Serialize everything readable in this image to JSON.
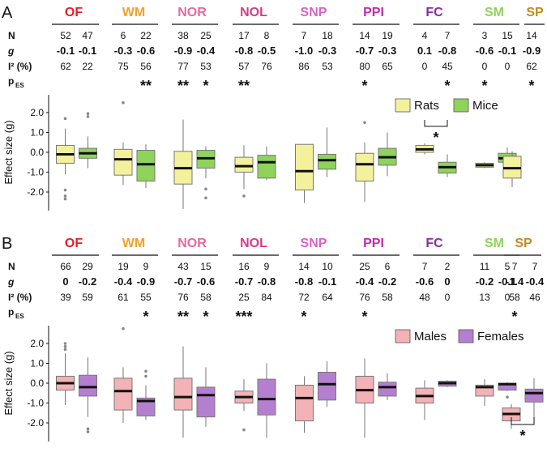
{
  "chart_data": [
    {
      "panel": "A",
      "type": "box",
      "tests": [
        {
          "name": "OF",
          "color": "#e0202a"
        },
        {
          "name": "WM",
          "color": "#f2a12a"
        },
        {
          "name": "NOR",
          "color": "#e9689b"
        },
        {
          "name": "NOL",
          "color": "#d33d85"
        },
        {
          "name": "SNP",
          "color": "#d861c7"
        },
        {
          "name": "PPI",
          "color": "#c42aa9"
        },
        {
          "name": "FC",
          "color": "#8a2ca0"
        },
        {
          "name": "SM",
          "color": "#8fd35a"
        },
        {
          "name": "SP",
          "color": "#c58a1e"
        }
      ],
      "row_labels": {
        "n": "N",
        "g": "g",
        "i2": "I² (%)",
        "p": "p"
      },
      "p_subscript": "ES",
      "groups": [
        {
          "N": "52",
          "g": "-0.1",
          "I2": "62",
          "p": ""
        },
        {
          "N": "47",
          "g": "-0.1",
          "I2": "22",
          "p": ""
        },
        {
          "N": "6",
          "g": "-0.3",
          "I2": "75",
          "p": ""
        },
        {
          "N": "22",
          "g": "-0.6",
          "I2": "56",
          "p": "**"
        },
        {
          "N": "38",
          "g": "-0.9",
          "I2": "77",
          "p": "**"
        },
        {
          "N": "25",
          "g": "-0.4",
          "I2": "53",
          "p": "*"
        },
        {
          "N": "17",
          "g": "-0.8",
          "I2": "57",
          "p": "**"
        },
        {
          "N": "8",
          "g": "-0.5",
          "I2": "76",
          "p": ""
        },
        {
          "N": "7",
          "g": "-1.0",
          "I2": "86",
          "p": ""
        },
        {
          "N": "18",
          "g": "-0.3",
          "I2": "53",
          "p": ""
        },
        {
          "N": "14",
          "g": "-0.7",
          "I2": "80",
          "p": "*"
        },
        {
          "N": "19",
          "g": "-0.3",
          "I2": "65",
          "p": ""
        },
        {
          "N": "4",
          "g": "0.1",
          "I2": "0",
          "p": ""
        },
        {
          "N": "7",
          "g": "-0.8",
          "I2": "45",
          "p": "*"
        },
        {
          "N": "3",
          "g": "-0.6",
          "I2": "0",
          "p": "*",
          "grey": true
        },
        {
          "N": "15",
          "g": "-0.1",
          "I2": "0",
          "p": ""
        },
        {
          "N": "14",
          "g": "-0.9",
          "I2": "62",
          "p": "*"
        }
      ],
      "ylabel": "Effect size (g)",
      "yticks": [
        "2.0",
        "1.0",
        "0.0",
        "-1.0",
        "-2.0"
      ],
      "ylim": [
        -3.0,
        2.6
      ],
      "legend": [
        {
          "label": "Rats",
          "color": "#f4f19d"
        },
        {
          "label": "Mice",
          "color": "#8fd35a"
        }
      ],
      "boxes": [
        {
          "test": "OF",
          "series": "Rats",
          "q1": -0.55,
          "median": -0.1,
          "q3": 0.35,
          "wlo": -1.1,
          "whi": 1.2,
          "out": [
            1.7,
            -1.9,
            -2.2,
            -2.35
          ]
        },
        {
          "test": "OF",
          "series": "Mice",
          "q1": -0.3,
          "median": -0.05,
          "q3": 0.2,
          "wlo": -0.8,
          "whi": 0.8,
          "out": [
            1.95,
            1.8
          ]
        },
        {
          "test": "WM",
          "series": "Rats",
          "q1": -1.15,
          "median": -0.35,
          "q3": 0.15,
          "wlo": -1.65,
          "whi": 0.5,
          "out": [
            2.5
          ]
        },
        {
          "test": "WM",
          "series": "Mice",
          "q1": -1.45,
          "median": -0.6,
          "q3": 0.1,
          "wlo": -1.8,
          "whi": 0.4,
          "out": []
        },
        {
          "test": "NOR",
          "series": "Rats",
          "q1": -1.6,
          "median": -0.8,
          "q3": 0.05,
          "wlo": -2.85,
          "whi": 1.65,
          "out": []
        },
        {
          "test": "NOR",
          "series": "Mice",
          "q1": -0.8,
          "median": -0.3,
          "q3": 0.1,
          "wlo": -1.3,
          "whi": 0.3,
          "out": [
            -1.85,
            -2.3
          ]
        },
        {
          "test": "NOL",
          "series": "Rats",
          "q1": -1.0,
          "median": -0.7,
          "q3": -0.25,
          "wlo": -1.85,
          "whi": 0.35,
          "out": [
            -2.2
          ]
        },
        {
          "test": "NOL",
          "series": "Mice",
          "q1": -1.3,
          "median": -0.5,
          "q3": -0.15,
          "wlo": -1.4,
          "whi": 0.3,
          "out": []
        },
        {
          "test": "SNP",
          "series": "Rats",
          "q1": -1.9,
          "median": -0.95,
          "q3": 0.4,
          "wlo": -2.55,
          "whi": 0.4,
          "out": []
        },
        {
          "test": "SNP",
          "series": "Mice",
          "q1": -0.85,
          "median": -0.4,
          "q3": -0.1,
          "wlo": -1.25,
          "whi": 1.25,
          "out": []
        },
        {
          "test": "PPI",
          "series": "Rats",
          "q1": -1.45,
          "median": -0.6,
          "q3": -0.05,
          "wlo": -2.5,
          "whi": 0.5,
          "out": [
            1.5
          ]
        },
        {
          "test": "PPI",
          "series": "Mice",
          "q1": -0.65,
          "median": -0.25,
          "q3": 0.2,
          "wlo": -1.2,
          "whi": 1.0,
          "out": []
        },
        {
          "test": "FC",
          "series": "Rats",
          "q1": 0.0,
          "median": 0.15,
          "q3": 0.35,
          "wlo": -0.1,
          "whi": 0.45,
          "out": []
        },
        {
          "test": "FC",
          "series": "Mice",
          "q1": -1.05,
          "median": -0.75,
          "q3": -0.5,
          "wlo": -1.25,
          "whi": -0.1,
          "out": []
        },
        {
          "test": "SM",
          "series": "Rats",
          "q1": -0.75,
          "median": -0.65,
          "q3": -0.55,
          "wlo": -0.8,
          "whi": -0.5,
          "out": []
        },
        {
          "test": "SM",
          "series": "Mice",
          "q1": -0.5,
          "median": -0.3,
          "q3": -0.05,
          "wlo": -1.0,
          "whi": 0.25,
          "out": []
        },
        {
          "test": "SP",
          "series": "Rats",
          "q1": -1.3,
          "median": -0.8,
          "q3": -0.2,
          "wlo": -1.75,
          "whi": 0.05,
          "out": []
        }
      ],
      "significance": {
        "between": "FC",
        "label": "*"
      }
    },
    {
      "panel": "B",
      "type": "box",
      "tests": [
        {
          "name": "OF",
          "color": "#e0202a"
        },
        {
          "name": "WM",
          "color": "#f2a12a"
        },
        {
          "name": "NOR",
          "color": "#e9689b"
        },
        {
          "name": "NOL",
          "color": "#d33d85"
        },
        {
          "name": "SNP",
          "color": "#d861c7"
        },
        {
          "name": "PPI",
          "color": "#c42aa9"
        },
        {
          "name": "FC",
          "color": "#8a2ca0"
        },
        {
          "name": "SM",
          "color": "#8fd35a"
        },
        {
          "name": "SP",
          "color": "#c58a1e"
        }
      ],
      "row_labels": {
        "n": "N",
        "g": "g",
        "i2": "I² (%)",
        "p": "p"
      },
      "p_subscript": "ES",
      "groups": [
        {
          "N": "66",
          "g": "0",
          "I2": "39",
          "p": ""
        },
        {
          "N": "29",
          "g": "-0.2",
          "I2": "59",
          "p": ""
        },
        {
          "N": "19",
          "g": "-0.4",
          "I2": "61",
          "p": ""
        },
        {
          "N": "9",
          "g": "-0.9",
          "I2": "55",
          "p": "*"
        },
        {
          "N": "43",
          "g": "-0.7",
          "I2": "76",
          "p": "**"
        },
        {
          "N": "15",
          "g": "-0.6",
          "I2": "58",
          "p": "*"
        },
        {
          "N": "16",
          "g": "-0.7",
          "I2": "25",
          "p": "***"
        },
        {
          "N": "9",
          "g": "-0.8",
          "I2": "84",
          "p": ""
        },
        {
          "N": "14",
          "g": "-0.8",
          "I2": "72",
          "p": "*"
        },
        {
          "N": "10",
          "g": "-0.1",
          "I2": "64",
          "p": ""
        },
        {
          "N": "25",
          "g": "-0.4",
          "I2": "76",
          "p": "*"
        },
        {
          "N": "6",
          "g": "-0.2",
          "I2": "58",
          "p": ""
        },
        {
          "N": "7",
          "g": "-0.6",
          "I2": "48",
          "p": ""
        },
        {
          "N": "2",
          "g": "0",
          "I2": "0",
          "p": "",
          "grey": true
        },
        {
          "N": "11",
          "g": "-0.2",
          "I2": "13",
          "p": ""
        },
        {
          "N": "5",
          "g": "-0.1",
          "I2": "0",
          "p": ""
        },
        {
          "N": "7",
          "g": "-1.4",
          "I2": "58",
          "p": "*"
        },
        {
          "N": "7",
          "g": "-0.4",
          "I2": "46",
          "p": ""
        }
      ],
      "ylabel": "Effect size (g)",
      "yticks": [
        "2.0",
        "1.0",
        "0.0",
        "-1.0",
        "-2.0"
      ],
      "ylim": [
        -3.0,
        2.6
      ],
      "legend": [
        {
          "label": "Males",
          "color": "#f2b2b6"
        },
        {
          "label": "Females",
          "color": "#b57fd0"
        }
      ],
      "boxes": [
        {
          "test": "OF",
          "series": "Males",
          "q1": -0.35,
          "median": 0.0,
          "q3": 0.35,
          "wlo": -1.1,
          "whi": 1.5,
          "out": [
            2.0,
            1.85,
            1.7
          ]
        },
        {
          "test": "OF",
          "series": "Females",
          "q1": -0.65,
          "median": -0.2,
          "q3": 0.4,
          "wlo": -1.7,
          "whi": 1.3,
          "out": [
            -2.3,
            -2.45
          ]
        },
        {
          "test": "WM",
          "series": "Males",
          "q1": -1.35,
          "median": -0.4,
          "q3": 0.25,
          "wlo": -2.0,
          "whi": 0.8,
          "out": [
            2.75
          ]
        },
        {
          "test": "WM",
          "series": "Females",
          "q1": -1.65,
          "median": -0.9,
          "q3": -0.75,
          "wlo": -1.85,
          "whi": -0.1,
          "out": [
            0.6,
            0.35
          ]
        },
        {
          "test": "NOR",
          "series": "Males",
          "q1": -1.35,
          "median": -0.7,
          "q3": 0.25,
          "wlo": -2.75,
          "whi": 1.85,
          "out": []
        },
        {
          "test": "NOR",
          "series": "Females",
          "q1": -1.7,
          "median": -0.6,
          "q3": -0.2,
          "wlo": -2.2,
          "whi": 0.8,
          "out": []
        },
        {
          "test": "NOL",
          "series": "Males",
          "q1": -1.0,
          "median": -0.7,
          "q3": -0.4,
          "wlo": -1.4,
          "whi": 0.2,
          "out": [
            -2.35
          ]
        },
        {
          "test": "NOL",
          "series": "Females",
          "q1": -1.6,
          "median": -0.8,
          "q3": 0.2,
          "wlo": -2.75,
          "whi": 1.0,
          "out": []
        },
        {
          "test": "SNP",
          "series": "Males",
          "q1": -1.9,
          "median": -0.75,
          "q3": -0.1,
          "wlo": -2.5,
          "whi": 0.35,
          "out": []
        },
        {
          "test": "SNP",
          "series": "Females",
          "q1": -0.85,
          "median": -0.05,
          "q3": 0.55,
          "wlo": -1.2,
          "whi": 1.1,
          "out": []
        },
        {
          "test": "PPI",
          "series": "Males",
          "q1": -1.0,
          "median": -0.35,
          "q3": 0.35,
          "wlo": -2.75,
          "whi": 1.25,
          "out": []
        },
        {
          "test": "PPI",
          "series": "Females",
          "q1": -0.65,
          "median": -0.2,
          "q3": 0.05,
          "wlo": -0.85,
          "whi": 0.5,
          "out": []
        },
        {
          "test": "FC",
          "series": "Males",
          "q1": -1.0,
          "median": -0.65,
          "q3": -0.25,
          "wlo": -1.85,
          "whi": 0.15,
          "out": []
        },
        {
          "test": "FC",
          "series": "Females",
          "q1": -0.15,
          "median": 0.0,
          "q3": 0.1,
          "wlo": -0.2,
          "whi": 0.15,
          "out": []
        },
        {
          "test": "SM",
          "series": "Males",
          "q1": -0.65,
          "median": -0.2,
          "q3": -0.1,
          "wlo": -1.15,
          "whi": 0.2,
          "out": []
        },
        {
          "test": "SM",
          "series": "Females",
          "q1": -0.35,
          "median": -0.05,
          "q3": 0.0,
          "wlo": -0.4,
          "whi": 0.05,
          "out": [
            -0.7
          ]
        },
        {
          "test": "SP",
          "series": "Males",
          "q1": -1.9,
          "median": -1.55,
          "q3": -1.25,
          "wlo": -2.3,
          "whi": -1.05,
          "out": []
        },
        {
          "test": "SP",
          "series": "Females",
          "q1": -0.95,
          "median": -0.5,
          "q3": -0.3,
          "wlo": -1.9,
          "whi": 0.25,
          "out": []
        }
      ],
      "significance": {
        "between": "SP",
        "label": "*"
      }
    }
  ]
}
